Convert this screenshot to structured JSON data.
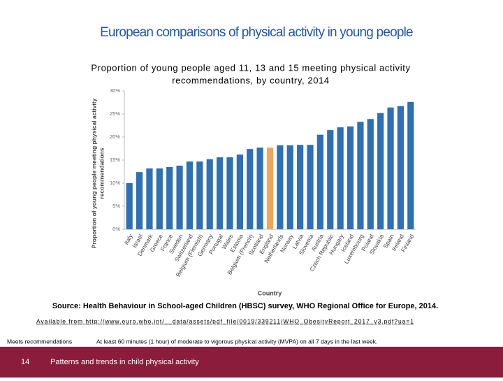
{
  "slide_title": "European comparisons of physical activity in young people",
  "chart_data": {
    "type": "bar",
    "title_lines": [
      "Proportion of young people aged 11, 13 and 15 meeting physical activity",
      "recommendations, by country, 2014"
    ],
    "y_label_lines": [
      "Proportion of young people meeting physical activity",
      "recommendations"
    ],
    "x_label": "Country",
    "categories": [
      "Italy",
      "Israel",
      "Denmark",
      "Greece",
      "France",
      "Sweden",
      "Switzerland",
      "Belgium (Flemish)",
      "Germany",
      "Portugal",
      "Wales",
      "Estonia",
      "Belgium (French)",
      "Scotland",
      "England",
      "Netherlands",
      "Norway",
      "Latvia",
      "Slovenia",
      "Austria",
      "Czech Republic",
      "Hungary",
      "Iceland",
      "Luxembourg",
      "Poland",
      "Slovakia",
      "Spain",
      "Ireland",
      "Finland"
    ],
    "values": [
      10.0,
      12.4,
      13.2,
      13.2,
      13.5,
      13.8,
      14.7,
      14.7,
      15.2,
      15.6,
      15.6,
      16.2,
      17.4,
      17.7,
      17.7,
      18.2,
      18.2,
      18.3,
      18.3,
      20.5,
      21.5,
      22.1,
      22.3,
      23.3,
      23.9,
      25.2,
      26.4,
      26.7,
      27.6
    ],
    "colors": [
      "#2e6fb5",
      "#2e6fb5",
      "#2e6fb5",
      "#2e6fb5",
      "#2e6fb5",
      "#2e6fb5",
      "#2e6fb5",
      "#2e6fb5",
      "#2e6fb5",
      "#2e6fb5",
      "#2e6fb5",
      "#2e6fb5",
      "#2e6fb5",
      "#2e6fb5",
      "#f0a55a",
      "#2e6fb5",
      "#2e6fb5",
      "#2e6fb5",
      "#2e6fb5",
      "#2e6fb5",
      "#2e6fb5",
      "#2e6fb5",
      "#2e6fb5",
      "#2e6fb5",
      "#2e6fb5",
      "#2e6fb5",
      "#2e6fb5",
      "#2e6fb5",
      "#2e6fb5"
    ],
    "ylim": [
      0,
      30
    ],
    "yticks": [
      {
        "value": 0,
        "label": "0%"
      },
      {
        "value": 5,
        "label": "5%"
      },
      {
        "value": 10,
        "label": "10%"
      },
      {
        "value": 15,
        "label": "15%"
      },
      {
        "value": 20,
        "label": "20%"
      },
      {
        "value": 25,
        "label": "25%"
      },
      {
        "value": 30,
        "label": "30%"
      }
    ],
    "grid": false
  },
  "source": "Source: Health Behaviour in School-aged Children (HBSC) survey, WHO Regional Office for Europe, 2014.",
  "available": "Available from http://www.euro.who.int/__data/assets/pdf_file/0019/339211/WHO_ObesityReport_2017_v3.pdf?ua=1",
  "note_term": "Meets recommendations",
  "note_definition": "At least 60 minutes (1 hour) of moderate to vigorous physical activity (MVPA) on all 7 days in the last week.",
  "footer": {
    "page": "14",
    "text": "Patterns and trends in child physical activity"
  }
}
